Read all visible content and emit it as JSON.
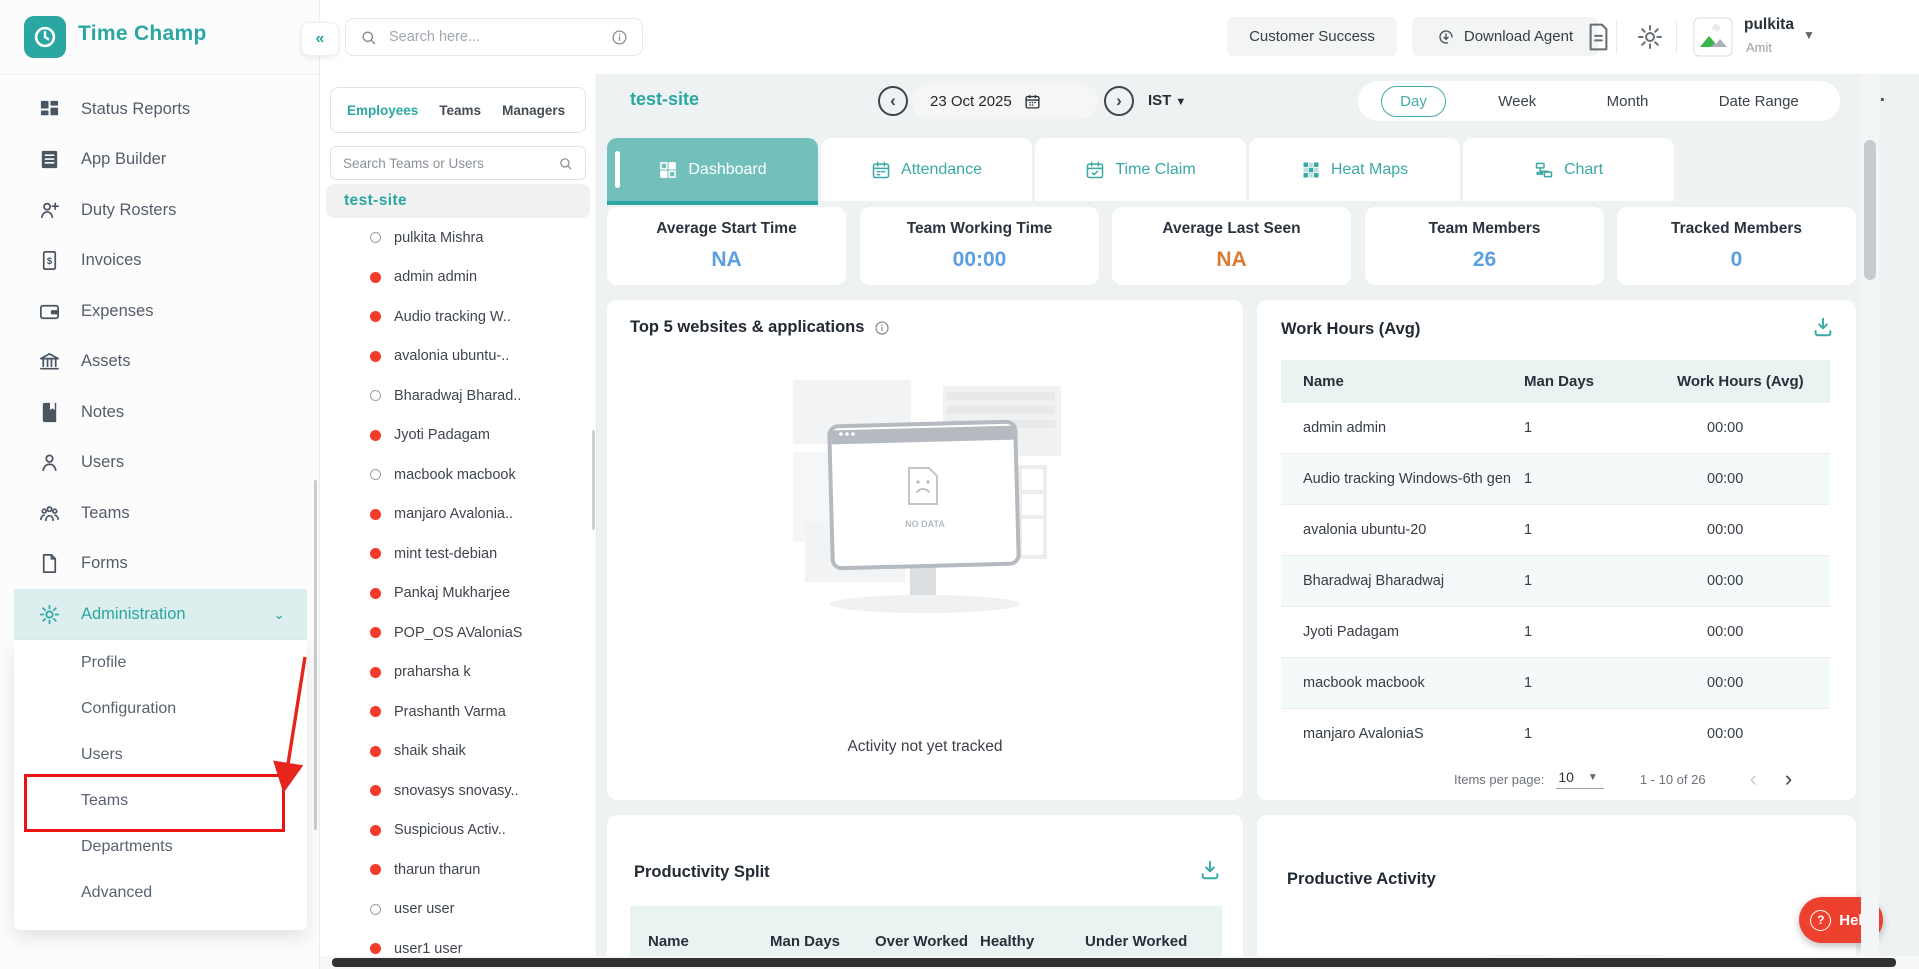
{
  "brand": {
    "name": "Time Champ",
    "accent": "#2aa7a2"
  },
  "topbar": {
    "search_placeholder": "Search here...",
    "customer_success_label": "Customer Success",
    "download_agent_label": "Download Agent",
    "user_name": "pulkita",
    "user_company": "Amit"
  },
  "sidebar": {
    "collapse_glyph": "«",
    "items": [
      {
        "id": "status-reports",
        "label": "Status Reports",
        "icon": "status-reports"
      },
      {
        "id": "app-builder",
        "label": "App Builder",
        "icon": "app-builder"
      },
      {
        "id": "duty-rosters",
        "label": "Duty Rosters",
        "icon": "duty-rosters"
      },
      {
        "id": "invoices",
        "label": "Invoices",
        "icon": "invoices"
      },
      {
        "id": "expenses",
        "label": "Expenses",
        "icon": "expenses"
      },
      {
        "id": "assets",
        "label": "Assets",
        "icon": "assets"
      },
      {
        "id": "notes",
        "label": "Notes",
        "icon": "notes"
      },
      {
        "id": "users",
        "label": "Users",
        "icon": "users"
      },
      {
        "id": "teams",
        "label": "Teams",
        "icon": "teams"
      },
      {
        "id": "forms",
        "label": "Forms",
        "icon": "forms"
      },
      {
        "id": "administration",
        "label": "Administration",
        "icon": "administration",
        "active": true,
        "expanded": true
      }
    ],
    "admin_children": [
      "Profile",
      "Configuration",
      "Users",
      "Teams",
      "Departments",
      "Advanced"
    ],
    "annotated_child": "Teams"
  },
  "employee_panel": {
    "tabs": [
      "Employees",
      "Teams",
      "Managers"
    ],
    "active_tab": "Employees",
    "search_placeholder": "Search Teams or Users",
    "group_name": "test-site",
    "users": [
      {
        "name": "pulkita Mishra",
        "status": "hollow"
      },
      {
        "name": "admin admin",
        "status": "red"
      },
      {
        "name": "Audio tracking W..",
        "status": "red"
      },
      {
        "name": "avalonia ubuntu-..",
        "status": "red"
      },
      {
        "name": "Bharadwaj Bharad..",
        "status": "hollow"
      },
      {
        "name": "Jyoti Padagam",
        "status": "red"
      },
      {
        "name": "macbook macbook",
        "status": "hollow"
      },
      {
        "name": "manjaro Avalonia..",
        "status": "red"
      },
      {
        "name": "mint test-debian",
        "status": "red"
      },
      {
        "name": "Pankaj Mukharjee",
        "status": "red"
      },
      {
        "name": "POP_OS AValoniaS",
        "status": "red"
      },
      {
        "name": "praharsha k",
        "status": "red"
      },
      {
        "name": "Prashanth Varma",
        "status": "red"
      },
      {
        "name": "shaik shaik",
        "status": "red"
      },
      {
        "name": "snovasys snovasy..",
        "status": "red"
      },
      {
        "name": "Suspicious Activ..",
        "status": "red"
      },
      {
        "name": "tharun tharun",
        "status": "red"
      },
      {
        "name": "user user",
        "status": "hollow"
      },
      {
        "name": "user1 user",
        "status": "red"
      }
    ]
  },
  "main": {
    "title": "test-site",
    "date": "23 Oct 2025",
    "timezone": "IST",
    "ellipsis": "…",
    "range_tabs": [
      "Day",
      "Week",
      "Month",
      "Date Range"
    ],
    "active_range": "Day",
    "tabs": [
      {
        "label": "Dashboard",
        "icon": "dashboard",
        "active": true
      },
      {
        "label": "Attendance",
        "icon": "attendance"
      },
      {
        "label": "Time Claim",
        "icon": "time-claim"
      },
      {
        "label": "Heat Maps",
        "icon": "heat-maps"
      },
      {
        "label": "Chart",
        "icon": "chart"
      }
    ],
    "stats": [
      {
        "label": "Average Start Time",
        "value": "NA",
        "value_color": "#5b9fe0"
      },
      {
        "label": "Team Working Time",
        "value": "00:00",
        "value_color": "#5b9fe0"
      },
      {
        "label": "Average Last Seen",
        "value": "NA",
        "value_color": "#da7a33"
      },
      {
        "label": "Team Members",
        "value": "26",
        "value_color": "#5b9fe0"
      },
      {
        "label": "Tracked Members",
        "value": "0",
        "value_color": "#5b9fe0"
      }
    ],
    "top5": {
      "title": "Top 5 websites & applications",
      "no_data_label": "NO DATA",
      "empty_text": "Activity not yet tracked"
    },
    "work_hours": {
      "title": "Work Hours (Avg)",
      "columns": [
        "Name",
        "Man Days",
        "Work Hours (Avg)"
      ],
      "rows": [
        {
          "name": "admin admin",
          "man_days": "1",
          "hours": "00:00"
        },
        {
          "name": "Audio tracking Windows-6th gen",
          "man_days": "1",
          "hours": "00:00"
        },
        {
          "name": "avalonia ubuntu-20",
          "man_days": "1",
          "hours": "00:00"
        },
        {
          "name": "Bharadwaj Bharadwaj",
          "man_days": "1",
          "hours": "00:00"
        },
        {
          "name": "Jyoti Padagam",
          "man_days": "1",
          "hours": "00:00"
        },
        {
          "name": "macbook macbook",
          "man_days": "1",
          "hours": "00:00"
        },
        {
          "name": "manjaro AvaloniaS",
          "man_days": "1",
          "hours": "00:00"
        }
      ],
      "pagination": {
        "label": "Items per page:",
        "per_page": "10",
        "range": "1 - 10 of 26",
        "prev": "‹",
        "next": "›"
      }
    },
    "productivity_split": {
      "title": "Productivity Split",
      "columns": [
        "Name",
        "Man Days",
        "Over Worked",
        "Healthy",
        "Under Worked"
      ]
    },
    "productive_activity": {
      "title": "Productive Activity"
    }
  },
  "help": {
    "label": "Help"
  }
}
